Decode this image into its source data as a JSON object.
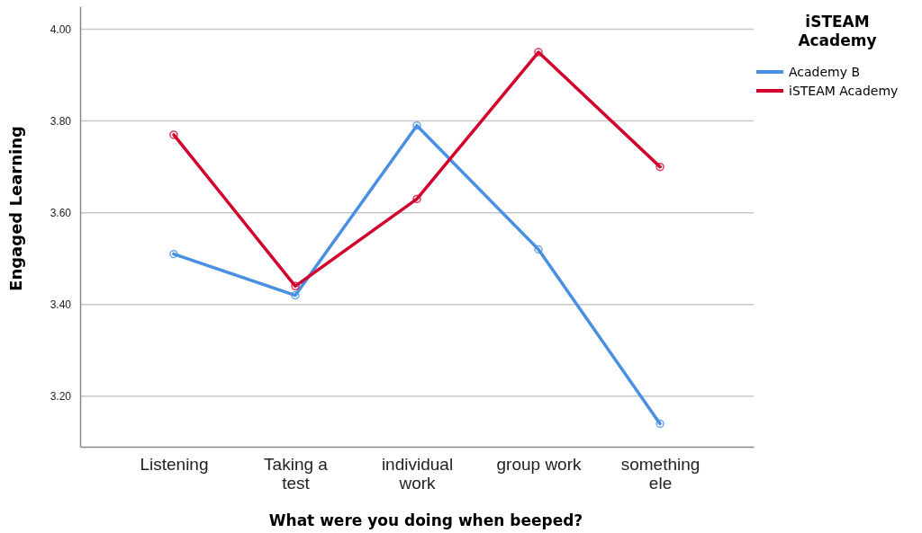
{
  "chart_data": {
    "type": "line",
    "xlabel": "What were you doing when beeped?",
    "ylabel": "Engaged Learning",
    "legend_title": "iSTEAM Academy",
    "categories": [
      "Listening",
      "Taking a test",
      "individual work",
      "group work",
      "something ele"
    ],
    "series": [
      {
        "name": "Academy B",
        "color": "#4a90e2",
        "values": [
          3.51,
          3.42,
          3.79,
          3.52,
          3.14
        ]
      },
      {
        "name": "iSTEAM Academy",
        "color": "#d2042d",
        "values": [
          3.77,
          3.44,
          3.63,
          3.95,
          3.7
        ]
      }
    ],
    "ylim": [
      3.09,
      4.05
    ],
    "yticks": [
      {
        "value": 3.2,
        "label": "3.20"
      },
      {
        "value": 3.4,
        "label": "3.40"
      },
      {
        "value": 3.6,
        "label": "3.60"
      },
      {
        "value": 3.8,
        "label": "3.80"
      },
      {
        "value": 4.0,
        "label": "4.00"
      }
    ],
    "grid": "y",
    "legend": "top right",
    "marker": "circle",
    "line_style": "solid"
  }
}
